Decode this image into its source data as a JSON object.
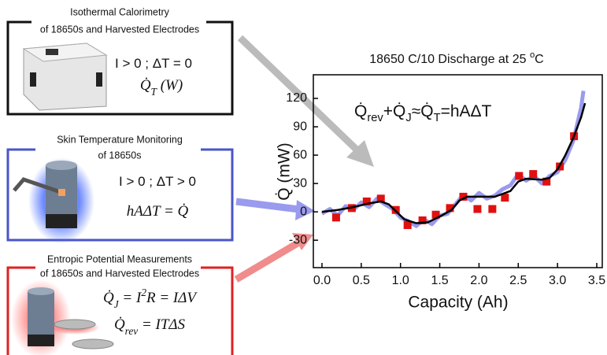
{
  "panels": [
    {
      "title": [
        "Isothermal Calorimetry",
        "of 18650s and Harvested Electrodes"
      ],
      "equations": [
        [
          {
            "text": "I > 0 ; ΔT = 0"
          }
        ],
        [
          {
            "text": "Q̇"
          },
          {
            "sub": "T"
          },
          {
            "text": " (W)"
          }
        ]
      ]
    },
    {
      "title": [
        "Skin Temperature Monitoring",
        "of 18650s"
      ],
      "equations": [
        [
          {
            "text": "I > 0 ; ΔT > 0"
          }
        ],
        [
          {
            "text": "hAΔT = Q̇"
          }
        ]
      ]
    },
    {
      "title": [
        "Entropic Potential Measurements",
        "of 18650s and Harvested Electrodes"
      ],
      "equations": [
        [
          {
            "text": "Q̇"
          },
          {
            "sub": "J"
          },
          {
            "text": " = I"
          },
          {
            "sup": "2"
          },
          {
            "text": "R = IΔV"
          }
        ],
        [
          {
            "text": "Q̇"
          },
          {
            "sub": "rev"
          },
          {
            "text": " = ITΔS"
          }
        ]
      ]
    }
  ],
  "chart_data": {
    "type": "line",
    "title": [
      {
        "text": "18650 C/10 Discharge at 25 "
      },
      {
        "sup": "o"
      },
      {
        "text": "C"
      }
    ],
    "annotation": [
      {
        "text": "Q̇"
      },
      {
        "sub": "rev"
      },
      {
        "text": "+Q̇"
      },
      {
        "sub": "J"
      },
      {
        "text": "≈Q̇"
      },
      {
        "sub": "T"
      },
      {
        "text": "=hAΔT"
      }
    ],
    "x_label": "Capacity (Ah)",
    "y_label": "Q̇ (mW)",
    "xlim": [
      -0.11,
      3.57
    ],
    "ylim": [
      -59,
      145
    ],
    "xticks": [
      {
        "value": 0,
        "label": "0.0"
      },
      0.5,
      {
        "value": 1,
        "label": "1.0"
      },
      1.5,
      {
        "value": 2,
        "label": "2.0"
      },
      2.5,
      {
        "value": 3,
        "label": "3.0"
      },
      3.5
    ],
    "yticks": [
      -30,
      0,
      30,
      60,
      90,
      120
    ],
    "series": [
      {
        "color": "#9a9aee",
        "style": "line",
        "x": [
          0,
          0.1,
          0.2,
          0.3,
          0.4,
          0.5,
          0.6,
          0.7,
          0.8,
          0.9,
          1.0,
          1.1,
          1.2,
          1.3,
          1.4,
          1.5,
          1.6,
          1.7,
          1.8,
          1.9,
          2.0,
          2.1,
          2.2,
          2.3,
          2.4,
          2.5,
          2.6,
          2.7,
          2.8,
          2.9,
          3.0,
          3.1,
          3.2,
          3.3,
          3.33
        ],
        "values": [
          -2,
          3,
          -4,
          6,
          2,
          10,
          5,
          14,
          8,
          3,
          -6,
          -10,
          -15,
          -8,
          -13,
          -4,
          -2,
          8,
          18,
          12,
          20,
          14,
          17,
          24,
          28,
          40,
          33,
          38,
          30,
          38,
          42,
          55,
          75,
          110,
          128
        ]
      },
      {
        "color": "#e01010",
        "style": "marker",
        "x": [
          0.18,
          0.38,
          0.57,
          0.75,
          0.94,
          1.09,
          1.28,
          1.45,
          1.63,
          1.8,
          1.98,
          2.17,
          2.33,
          2.51,
          2.69,
          2.86,
          3.03,
          3.21
        ],
        "values": [
          -6,
          4,
          11,
          14,
          2,
          -14,
          -9,
          -3,
          4,
          16,
          3,
          3,
          15,
          38,
          40,
          32,
          48,
          80
        ]
      },
      {
        "color": "#000000",
        "style": "line",
        "x": [
          0,
          0.2,
          0.4,
          0.6,
          0.75,
          0.85,
          0.95,
          1.05,
          1.2,
          1.35,
          1.5,
          1.65,
          1.75,
          1.85,
          2.0,
          2.2,
          2.4,
          2.5,
          2.6,
          2.8,
          2.9,
          3.0,
          3.1,
          3.2,
          3.3,
          3.35
        ],
        "values": [
          0,
          2,
          5,
          9,
          11,
          8,
          0,
          -8,
          -12,
          -11,
          -5,
          2,
          12,
          16,
          16,
          16,
          22,
          32,
          35,
          34,
          36,
          45,
          60,
          78,
          100,
          115
        ]
      }
    ]
  }
}
